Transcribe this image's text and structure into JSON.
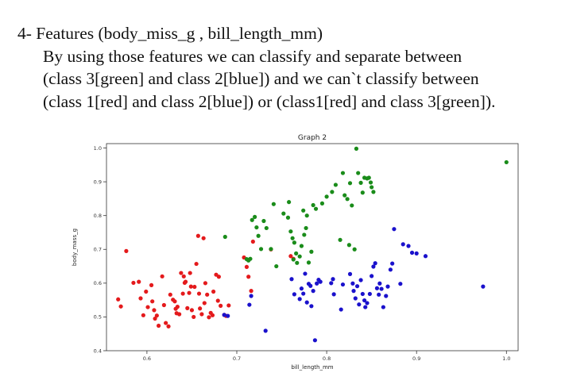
{
  "heading": "4- Features (body_miss_g , bill_length_mm)",
  "paragraph_lines": [
    "By using those features we can classify and separate between",
    "(class 3[green] and class 2[blue]) and we can`t classify between",
    "(class 1[red] and class 2[blue]) or (class1[red] and class 3[green])."
  ],
  "chart_data": {
    "type": "scatter",
    "title": "Graph 2",
    "xlabel": "bill_length_mm",
    "ylabel": "body_mass_g",
    "xlim": [
      0.555,
      1.013
    ],
    "ylim": [
      0.4,
      1.013
    ],
    "xticks": [
      0.6,
      0.7,
      0.8,
      0.9,
      1.0
    ],
    "xtick_labels": [
      "0.6",
      "0.7",
      "0.8",
      "0.9",
      "1.0"
    ],
    "yticks": [
      0.4,
      0.5,
      0.6,
      0.7,
      0.8,
      0.9,
      1.0
    ],
    "ytick_labels": [
      "0.4",
      "0.5",
      "0.6",
      "0.7",
      "0.8",
      "0.9",
      "1.0"
    ],
    "grid": false,
    "legend": "none",
    "series": [
      {
        "color": "#e41a1c",
        "points": [
          [
            0.577,
            0.695
          ],
          [
            0.568,
            0.552
          ],
          [
            0.571,
            0.531
          ],
          [
            0.585,
            0.601
          ],
          [
            0.591,
            0.604
          ],
          [
            0.593,
            0.555
          ],
          [
            0.596,
            0.505
          ],
          [
            0.599,
            0.575
          ],
          [
            0.601,
            0.529
          ],
          [
            0.605,
            0.594
          ],
          [
            0.606,
            0.546
          ],
          [
            0.608,
            0.52
          ],
          [
            0.609,
            0.495
          ],
          [
            0.611,
            0.504
          ],
          [
            0.613,
            0.474
          ],
          [
            0.617,
            0.62
          ],
          [
            0.619,
            0.535
          ],
          [
            0.621,
            0.482
          ],
          [
            0.624,
            0.472
          ],
          [
            0.626,
            0.566
          ],
          [
            0.629,
            0.551
          ],
          [
            0.631,
            0.546
          ],
          [
            0.632,
            0.524
          ],
          [
            0.633,
            0.511
          ],
          [
            0.634,
            0.53
          ],
          [
            0.636,
            0.508
          ],
          [
            0.638,
            0.63
          ],
          [
            0.64,
            0.569
          ],
          [
            0.641,
            0.62
          ],
          [
            0.642,
            0.601
          ],
          [
            0.643,
            0.604
          ],
          [
            0.645,
            0.526
          ],
          [
            0.647,
            0.571
          ],
          [
            0.648,
            0.63
          ],
          [
            0.649,
            0.59
          ],
          [
            0.65,
            0.52
          ],
          [
            0.652,
            0.5
          ],
          [
            0.653,
            0.589
          ],
          [
            0.655,
            0.657
          ],
          [
            0.657,
            0.74
          ],
          [
            0.658,
            0.569
          ],
          [
            0.659,
            0.525
          ],
          [
            0.661,
            0.508
          ],
          [
            0.663,
            0.733
          ],
          [
            0.664,
            0.541
          ],
          [
            0.665,
            0.6
          ],
          [
            0.667,
            0.566
          ],
          [
            0.669,
            0.499
          ],
          [
            0.671,
            0.512
          ],
          [
            0.673,
            0.505
          ],
          [
            0.674,
            0.575
          ],
          [
            0.677,
            0.625
          ],
          [
            0.679,
            0.548
          ],
          [
            0.68,
            0.619
          ],
          [
            0.682,
            0.533
          ],
          [
            0.686,
            0.506
          ],
          [
            0.688,
            0.503
          ],
          [
            0.691,
            0.534
          ],
          [
            0.708,
            0.676
          ],
          [
            0.711,
            0.648
          ],
          [
            0.713,
            0.619
          ],
          [
            0.716,
            0.577
          ],
          [
            0.718,
            0.723
          ],
          [
            0.738,
            0.7
          ],
          [
            0.76,
            0.68
          ],
          [
            0.763,
            0.672
          ]
        ]
      },
      {
        "color": "#1a11cc",
        "points": [
          [
            0.686,
            0.506
          ],
          [
            0.69,
            0.503
          ],
          [
            0.714,
            0.536
          ],
          [
            0.716,
            0.562
          ],
          [
            0.732,
            0.459
          ],
          [
            0.761,
            0.612
          ],
          [
            0.764,
            0.567
          ],
          [
            0.77,
            0.553
          ],
          [
            0.772,
            0.584
          ],
          [
            0.774,
            0.569
          ],
          [
            0.776,
            0.628
          ],
          [
            0.778,
            0.543
          ],
          [
            0.78,
            0.598
          ],
          [
            0.782,
            0.592
          ],
          [
            0.783,
            0.532
          ],
          [
            0.785,
            0.577
          ],
          [
            0.787,
            0.431
          ],
          [
            0.789,
            0.599
          ],
          [
            0.791,
            0.61
          ],
          [
            0.793,
            0.604
          ],
          [
            0.805,
            0.6
          ],
          [
            0.807,
            0.612
          ],
          [
            0.808,
            0.567
          ],
          [
            0.816,
            0.522
          ],
          [
            0.818,
            0.596
          ],
          [
            0.826,
            0.627
          ],
          [
            0.829,
            0.599
          ],
          [
            0.83,
            0.577
          ],
          [
            0.832,
            0.555
          ],
          [
            0.834,
            0.591
          ],
          [
            0.836,
            0.537
          ],
          [
            0.838,
            0.609
          ],
          [
            0.84,
            0.568
          ],
          [
            0.842,
            0.549
          ],
          [
            0.843,
            0.529
          ],
          [
            0.845,
            0.541
          ],
          [
            0.848,
            0.568
          ],
          [
            0.85,
            0.621
          ],
          [
            0.852,
            0.649
          ],
          [
            0.854,
            0.659
          ],
          [
            0.856,
            0.585
          ],
          [
            0.858,
            0.566
          ],
          [
            0.859,
            0.599
          ],
          [
            0.861,
            0.583
          ],
          [
            0.863,
            0.529
          ],
          [
            0.866,
            0.562
          ],
          [
            0.868,
            0.59
          ],
          [
            0.871,
            0.64
          ],
          [
            0.873,
            0.658
          ],
          [
            0.875,
            0.76
          ],
          [
            0.882,
            0.598
          ],
          [
            0.885,
            0.715
          ],
          [
            0.891,
            0.71
          ],
          [
            0.895,
            0.69
          ],
          [
            0.9,
            0.688
          ],
          [
            0.91,
            0.68
          ],
          [
            0.974,
            0.59
          ]
        ]
      },
      {
        "color": "#1a8c1a",
        "points": [
          [
            0.687,
            0.737
          ],
          [
            0.711,
            0.671
          ],
          [
            0.713,
            0.667
          ],
          [
            0.715,
            0.672
          ],
          [
            0.717,
            0.787
          ],
          [
            0.72,
            0.796
          ],
          [
            0.722,
            0.765
          ],
          [
            0.724,
            0.74
          ],
          [
            0.727,
            0.701
          ],
          [
            0.73,
            0.784
          ],
          [
            0.733,
            0.763
          ],
          [
            0.738,
            0.701
          ],
          [
            0.741,
            0.834
          ],
          [
            0.744,
            0.65
          ],
          [
            0.752,
            0.806
          ],
          [
            0.757,
            0.794
          ],
          [
            0.758,
            0.84
          ],
          [
            0.76,
            0.753
          ],
          [
            0.762,
            0.733
          ],
          [
            0.763,
            0.67
          ],
          [
            0.764,
            0.72
          ],
          [
            0.766,
            0.688
          ],
          [
            0.767,
            0.66
          ],
          [
            0.77,
            0.679
          ],
          [
            0.772,
            0.71
          ],
          [
            0.774,
            0.815
          ],
          [
            0.775,
            0.743
          ],
          [
            0.777,
            0.763
          ],
          [
            0.778,
            0.8
          ],
          [
            0.78,
            0.661
          ],
          [
            0.783,
            0.693
          ],
          [
            0.785,
            0.831
          ],
          [
            0.788,
            0.82
          ],
          [
            0.795,
            0.836
          ],
          [
            0.8,
            0.856
          ],
          [
            0.806,
            0.87
          ],
          [
            0.81,
            0.891
          ],
          [
            0.815,
            0.728
          ],
          [
            0.818,
            0.926
          ],
          [
            0.82,
            0.86
          ],
          [
            0.823,
            0.849
          ],
          [
            0.825,
            0.713
          ],
          [
            0.826,
            0.896
          ],
          [
            0.828,
            0.83
          ],
          [
            0.831,
            0.7
          ],
          [
            0.833,
            0.998
          ],
          [
            0.835,
            0.926
          ],
          [
            0.838,
            0.897
          ],
          [
            0.84,
            0.868
          ],
          [
            0.842,
            0.912
          ],
          [
            0.845,
            0.91
          ],
          [
            0.847,
            0.912
          ],
          [
            0.849,
            0.898
          ],
          [
            0.85,
            0.884
          ],
          [
            0.852,
            0.87
          ],
          [
            1.0,
            0.958
          ]
        ]
      }
    ]
  }
}
